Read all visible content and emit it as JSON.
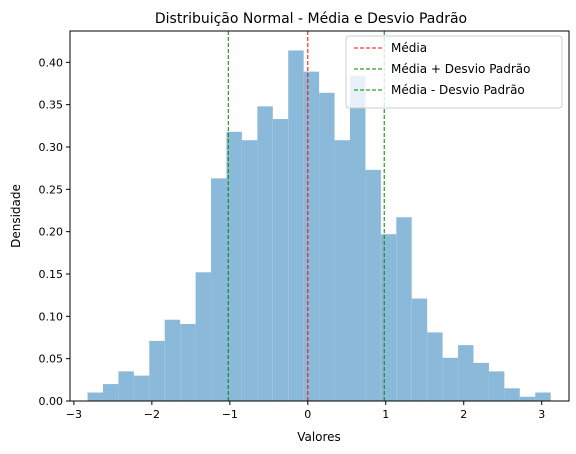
{
  "chart_data": {
    "type": "bar",
    "title": "Distribuição Normal - Média e Desvio Padrão",
    "xlabel": "Valores",
    "ylabel": "Densidade",
    "xlim": [
      -3.05,
      3.35
    ],
    "ylim": [
      0,
      0.437
    ],
    "grid": false,
    "bar_color": "#8bb9d9",
    "bin_edges": [
      -2.825,
      -2.627,
      -2.429,
      -2.231,
      -2.033,
      -1.835,
      -1.637,
      -1.439,
      -1.241,
      -1.043,
      -0.845,
      -0.647,
      -0.449,
      -0.251,
      -0.053,
      0.145,
      0.343,
      0.541,
      0.739,
      0.937,
      1.135,
      1.333,
      1.531,
      1.729,
      1.927,
      2.125,
      2.323,
      2.521,
      2.719,
      2.917,
      3.115
    ],
    "values": [
      0.01,
      0.02,
      0.035,
      0.03,
      0.071,
      0.096,
      0.091,
      0.152,
      0.263,
      0.318,
      0.308,
      0.348,
      0.333,
      0.414,
      0.389,
      0.364,
      0.308,
      0.384,
      0.273,
      0.197,
      0.217,
      0.121,
      0.081,
      0.051,
      0.066,
      0.045,
      0.035,
      0.015,
      0.005,
      0.01
    ],
    "x_ticks": [
      -3,
      -2,
      -1,
      0,
      1,
      2,
      3
    ],
    "x_tick_labels": [
      "−3",
      "−2",
      "−1",
      "0",
      "1",
      "2",
      "3"
    ],
    "y_ticks": [
      0,
      0.05,
      0.1,
      0.15,
      0.2,
      0.25,
      0.3,
      0.35,
      0.4
    ],
    "y_tick_labels": [
      "0.00",
      "0.05",
      "0.10",
      "0.15",
      "0.20",
      "0.25",
      "0.30",
      "0.35",
      "0.40"
    ],
    "lines": [
      {
        "name": "Média",
        "x": 0.0,
        "color": "#ff0000",
        "style": "dashed"
      },
      {
        "name": "Média + Desvio Padrão",
        "x": 0.98,
        "color": "#008000",
        "style": "dashed"
      },
      {
        "name": "Média - Desvio Padrão",
        "x": -1.02,
        "color": "#008000",
        "style": "dashed"
      }
    ],
    "legend_position": "top-right"
  }
}
